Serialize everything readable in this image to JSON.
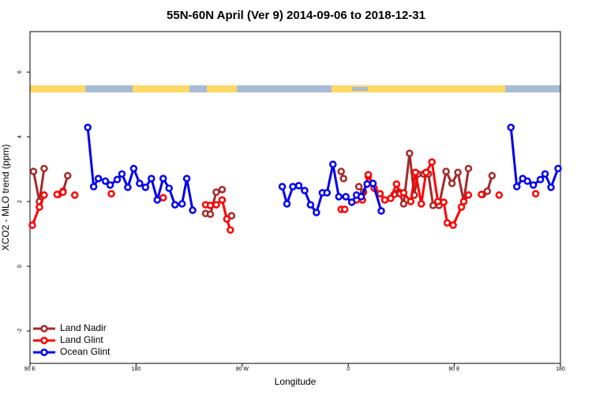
{
  "chart_data": {
    "type": "line",
    "title": "55N-60N April (Ver 9)   2014-09-06 to 2018-12-31",
    "x_label": "Longitude",
    "y_label": "XCO2 - MLO trend (ppm)",
    "xlim": [
      90,
      540
    ],
    "ylim": [
      -3,
      7.25
    ],
    "xticks": [
      {
        "value": 90,
        "label": "90 E"
      },
      180,
      {
        "value": 270,
        "label": "90 W"
      },
      {
        "value": 360,
        "label": "0"
      },
      {
        "value": 450,
        "label": "90 E"
      },
      {
        "value": 540,
        "label": "180"
      }
    ],
    "yticks": [
      -2,
      0,
      2,
      4,
      6
    ],
    "legend": "bottom-left",
    "series": [
      {
        "name": "Land Nadir",
        "color": "#a52a2a",
        "x": [
          93,
          98,
          102,
          null,
          114,
          118,
          122,
          null,
          239,
          243,
          248,
          253,
          null,
          261,
          null,
          354,
          356,
          null,
          369,
          373,
          377,
          null,
          399,
          403,
          407,
          412,
          416,
          419,
          424,
          428,
          432,
          437,
          443,
          448,
          453,
          458,
          462,
          null,
          474,
          478,
          482
        ],
        "values": [
          2.93,
          2.0,
          3.02,
          null,
          2.22,
          2.32,
          2.8,
          null,
          1.63,
          1.61,
          2.29,
          2.37,
          null,
          1.56,
          null,
          2.93,
          2.71,
          null,
          2.46,
          2.29,
          2.78,
          null,
          2.22,
          2.29,
          1.93,
          3.49,
          2.2,
          2.85,
          2.85,
          2.85,
          1.88,
          1.88,
          2.93,
          2.56,
          2.9,
          2.0,
          3.02,
          null,
          2.22,
          2.32,
          2.8
        ]
      },
      {
        "name": "Land Glint",
        "color": "#ff0000",
        "x": [
          92,
          98,
          102,
          null,
          113,
          118,
          null,
          128,
          null,
          159,
          null,
          203,
          null,
          239,
          243,
          248,
          253,
          257,
          260,
          null,
          354,
          357,
          null,
          367,
          372,
          377,
          382,
          387,
          391,
          396,
          401,
          404,
          407,
          413,
          417,
          422,
          426,
          431,
          436,
          441,
          444,
          449,
          456,
          458,
          462,
          null,
          473,
          null,
          488,
          null,
          519
        ],
        "values": [
          1.27,
          1.83,
          2.2,
          null,
          2.22,
          2.29,
          null,
          2.2,
          null,
          2.24,
          null,
          2.12,
          null,
          1.9,
          1.88,
          1.9,
          2.05,
          1.46,
          1.12,
          null,
          1.76,
          1.76,
          null,
          2.05,
          2.05,
          2.83,
          2.41,
          2.24,
          2.05,
          2.1,
          2.54,
          2.24,
          2.27,
          2.0,
          2.9,
          1.93,
          2.9,
          3.22,
          2.0,
          1.98,
          1.34,
          1.27,
          1.83,
          2.0,
          2.2,
          null,
          2.22,
          null,
          2.2,
          null,
          2.24
        ]
      },
      {
        "name": "Ocean Glint",
        "color": "#0000ee",
        "x": [
          139,
          144,
          148,
          154,
          158,
          164,
          168,
          173,
          178,
          183,
          188,
          193,
          198,
          203,
          208,
          213,
          219,
          223,
          228,
          null,
          304,
          308,
          313,
          318,
          323,
          328,
          333,
          338,
          342,
          347,
          352,
          358,
          363,
          367,
          371,
          376,
          381,
          388,
          null,
          498,
          503,
          508,
          512,
          517,
          523,
          527,
          532,
          538
        ],
        "values": [
          4.29,
          2.46,
          2.71,
          2.63,
          2.51,
          2.68,
          2.85,
          2.44,
          3.02,
          2.56,
          2.44,
          2.71,
          2.05,
          2.71,
          2.41,
          1.9,
          1.93,
          2.71,
          1.73,
          null,
          2.46,
          1.93,
          2.46,
          2.49,
          2.34,
          1.9,
          1.66,
          2.27,
          2.27,
          3.15,
          2.15,
          2.15,
          1.98,
          2.2,
          2.15,
          2.54,
          2.56,
          1.71,
          null,
          4.29,
          2.46,
          2.71,
          2.63,
          2.51,
          2.68,
          2.85,
          2.44,
          3.02
        ]
      }
    ]
  }
}
